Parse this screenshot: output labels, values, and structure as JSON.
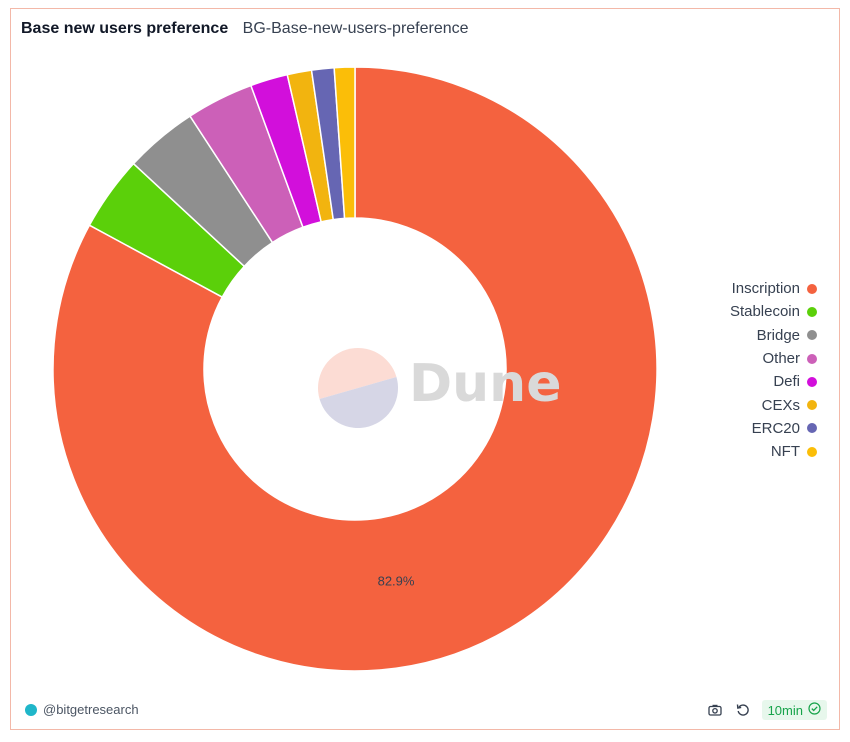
{
  "header": {
    "title": "Base new users preference",
    "subtitle": "BG-Base-new-users-preference"
  },
  "chart_data": {
    "type": "pie",
    "donut": true,
    "categories": [
      "Inscription",
      "Stablecoin",
      "Bridge",
      "Other",
      "Defi",
      "CEXs",
      "ERC20",
      "NFT"
    ],
    "values": [
      82.9,
      4.0,
      3.9,
      3.6,
      2.0,
      1.3,
      1.2,
      1.1
    ],
    "colors": [
      "#f4623f",
      "#5bd00a",
      "#8f8f8f",
      "#cc60b8",
      "#d20fdb",
      "#f2b40f",
      "#6666b3",
      "#fbbe08"
    ],
    "labels": [
      {
        "series": "Inscription",
        "text": "82.9%"
      }
    ],
    "legend_position": "right"
  },
  "watermark": {
    "text": "Dune"
  },
  "footer": {
    "author": "@bitgetresearch",
    "refresh_label": "10min",
    "icons": [
      "camera-icon",
      "refresh-icon",
      "check-circle-icon"
    ]
  }
}
